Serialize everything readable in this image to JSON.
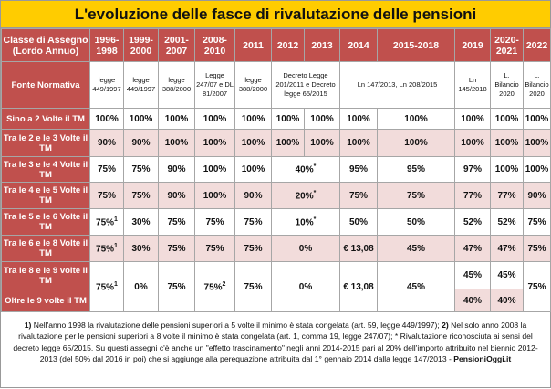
{
  "title": "L'evoluzione delle fasce di rivalutazione delle pensioni",
  "header": {
    "row_label": "Classe di Assegno (Lordo Annuo)",
    "periods": [
      "1996-1998",
      "1999-2000",
      "2001-2007",
      "2008-2010",
      "2011",
      "2012",
      "2013",
      "2014",
      "2015-2018",
      "2019",
      "2020-2021",
      "2022"
    ]
  },
  "sources": {
    "label": "Fonte Normativa",
    "cells": [
      "legge 449/1997",
      "legge 449/1997",
      "legge 388/2000",
      "Legge 247/07 e DL 81/2007",
      "legge 388/2000",
      "Decreto Legge 201/2011 e Decreto legge 65/2015",
      "Ln 147/2013, Ln 208/2015",
      "Ln 145/2018",
      "L. Bilancio 2020",
      "L. Bilancio 2020"
    ]
  },
  "rows": [
    {
      "label": "Sino a 2 Volte il TM",
      "cells": [
        "100%",
        "100%",
        "100%",
        "100%",
        "100%",
        "100%",
        "100%",
        "100%",
        "100%",
        "100%",
        "100%",
        "100%"
      ]
    },
    {
      "label": "Tra le 2 e le 3 Volte il TM",
      "cells": [
        "90%",
        "90%",
        "100%",
        "100%",
        "100%",
        "100%",
        "100%",
        "100%",
        "100%",
        "100%",
        "100%",
        "100%"
      ]
    },
    {
      "label": "Tra le 3 e le 4 Volte il TM",
      "cells": [
        "75%",
        "75%",
        "90%",
        "100%",
        "100%",
        {
          "text": "40%",
          "sup": "*"
        },
        "95%",
        "95%",
        "97%",
        "100%",
        "100%"
      ]
    },
    {
      "label": "Tra le 4 e le 5 Volte il TM",
      "cells": [
        "75%",
        "75%",
        "90%",
        "100%",
        "90%",
        {
          "text": "20%",
          "sup": "*"
        },
        "75%",
        "75%",
        "77%",
        "77%",
        "90%"
      ]
    },
    {
      "label": "Tra le 5 e le 6 Volte il TM",
      "cells": [
        {
          "text": "75%",
          "sup": "1"
        },
        "30%",
        "75%",
        "75%",
        "75%",
        {
          "text": "10%",
          "sup": "*"
        },
        "50%",
        "50%",
        "52%",
        "52%",
        "75%"
      ]
    },
    {
      "label": "Tra le 6 e le 8 Volte il TM",
      "cells": [
        {
          "text": "75%",
          "sup": "1"
        },
        "30%",
        "75%",
        "75%",
        "75%",
        "0%",
        "€ 13,08",
        "45%",
        "47%",
        "47%",
        "75%"
      ]
    },
    {
      "label": "Tra le 8 e le 9 volte il TM",
      "cells": [
        {
          "text": "75%",
          "sup": "1"
        },
        "0%",
        "75%",
        {
          "text": "75%",
          "sup": "2"
        },
        "75%",
        "0%",
        "€ 13,08",
        "45%",
        "45%",
        "45%",
        "75%"
      ]
    },
    {
      "label": "Oltre le 9 volte il TM",
      "cells": [
        "40%",
        "40%"
      ]
    }
  ],
  "footnote": [
    "1)",
    " Nell'anno 1998 la rivalutazione delle pensioni superiori a 5 volte il minimo è stata congelata (art. 59, legge 449/1997); ",
    "2)",
    " Nel solo anno 2008 la rivalutazione per le pensioni superiori a 8 volte il minimo è stata congelata (art. 1, comma 19, legge 247/07); * Rivalutazione riconosciuta ai sensi del decreto legge 65/2015. Su questi assegni c'è anche un \"effetto trascinamento\" negli anni 2014-2015 pari al 20% dell'importo attribuito nel biennio 2012-2013 (del 50% dal 2016 in poi) che si aggiunge alla perequazione attribuita dal 1° gennaio 2014 dalla legge 147/2013 - ",
    "PensioniOggi.it"
  ]
}
